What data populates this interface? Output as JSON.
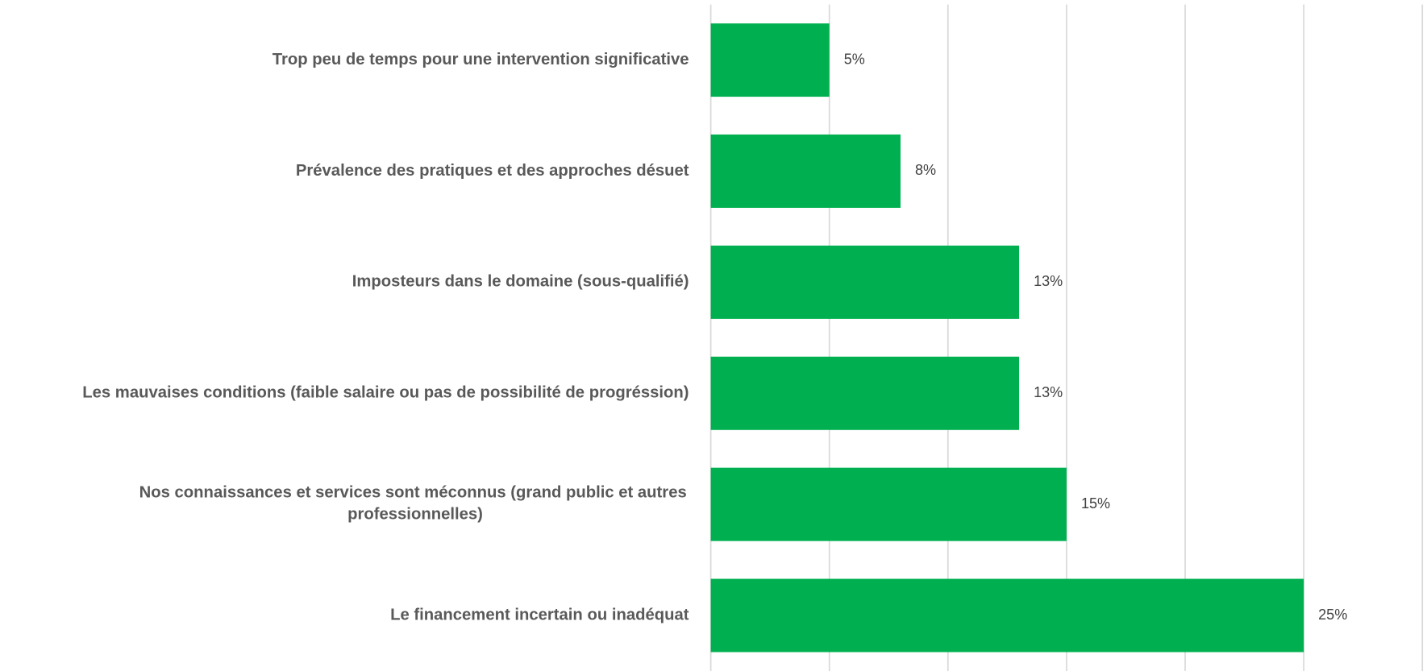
{
  "chart_data": {
    "type": "bar",
    "orientation": "horizontal",
    "categories": [
      "Trop peu de temps pour une intervention significative",
      "Prévalence des pratiques et des approches désuet",
      "Imposteurs dans le domaine (sous-qualifié)",
      "Les mauvaises conditions (faible salaire ou pas de possibilité de progréssion)",
      "Nos connaissances et services sont méconnus (grand public et autres professionnelles)",
      "Le financement incertain ou inadéquat"
    ],
    "values": [
      5,
      8,
      13,
      13,
      15,
      25
    ],
    "value_labels": [
      "5%",
      "8%",
      "13%",
      "13%",
      "15%",
      "25%"
    ],
    "color": "#00b050",
    "xlim": [
      0,
      30
    ],
    "xticks": [
      0,
      5,
      10,
      15,
      20,
      25,
      30
    ],
    "grid": true
  }
}
